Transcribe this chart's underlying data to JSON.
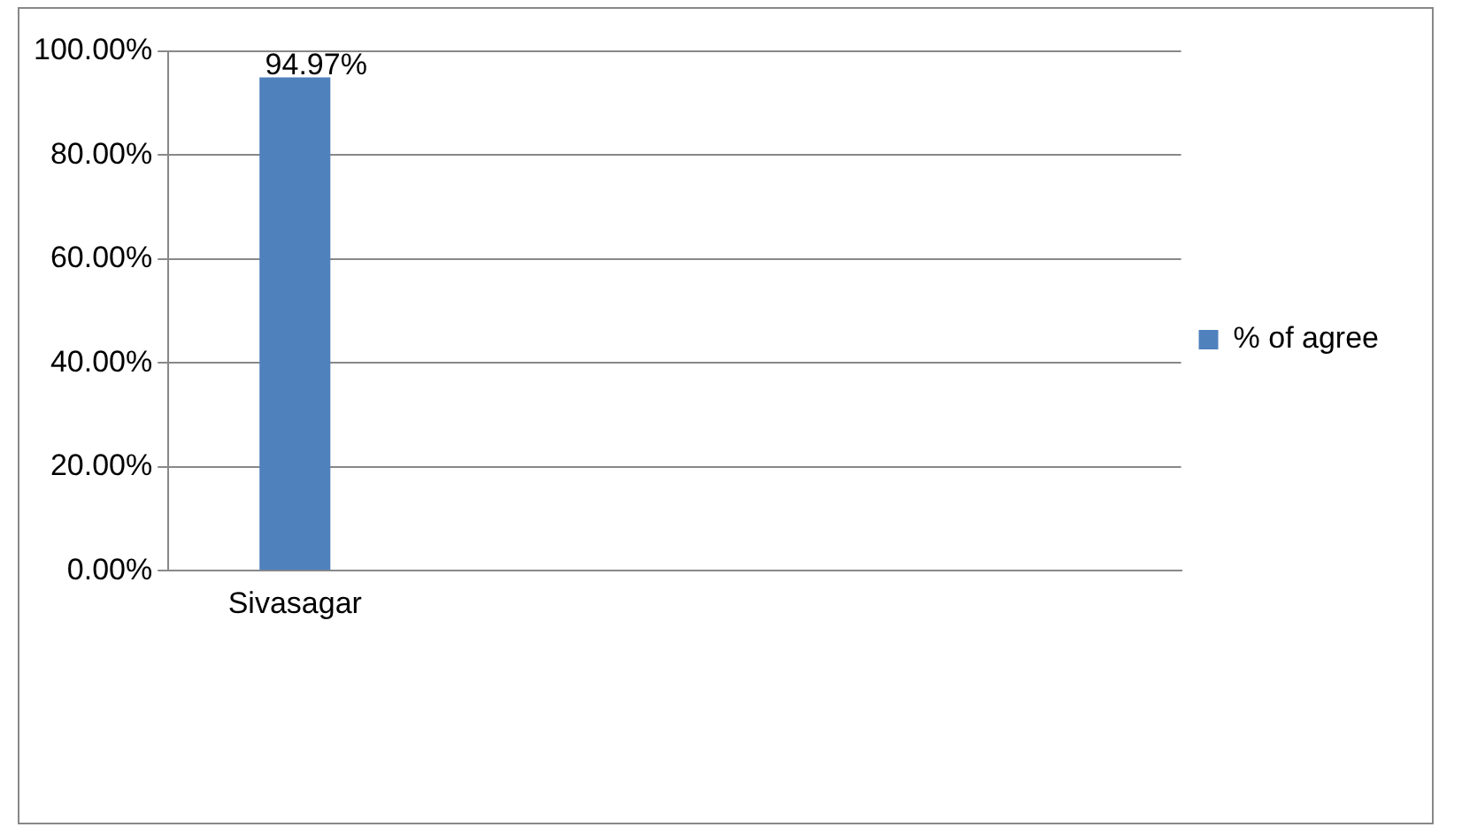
{
  "chart_data": {
    "type": "bar",
    "categories": [
      "Sivasagar",
      null,
      null,
      null
    ],
    "series": [
      {
        "name": "% of agree",
        "color": "#4f81bd",
        "values": [
          94.97,
          null,
          null,
          null
        ],
        "value_labels": [
          "94.97%",
          null,
          null,
          null
        ]
      }
    ],
    "ylim": [
      0,
      100
    ],
    "yticks": [
      {
        "value": 0,
        "label": "0.00%"
      },
      {
        "value": 20,
        "label": "20.00%"
      },
      {
        "value": 40,
        "label": "40.00%"
      },
      {
        "value": 60,
        "label": "60.00%"
      },
      {
        "value": 80,
        "label": "80.00%"
      },
      {
        "value": 100,
        "label": "100.00%"
      }
    ],
    "grid": "y",
    "legend": "right"
  }
}
